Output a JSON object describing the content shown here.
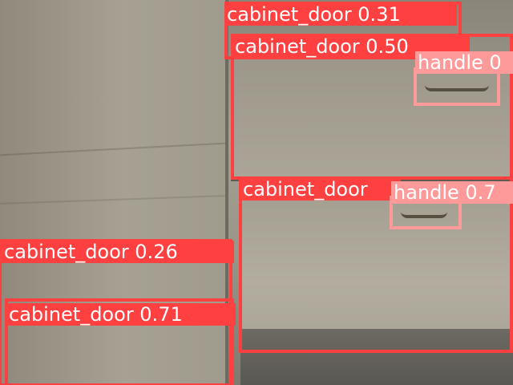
{
  "image": {
    "subject": "wooden cabinet doors and drawers with detection boxes",
    "colors": {
      "cabinet_door_box": "#ff4040",
      "handle_box": "#ff9a9a",
      "label_text": "#ffffff"
    }
  },
  "detections": [
    {
      "label": "cabinet_door 0.31"
    },
    {
      "label": "cabinet_door 0.50"
    },
    {
      "label": "handle 0"
    },
    {
      "label": "cabinet_door"
    },
    {
      "label": "handle 0.7"
    },
    {
      "label": "cabinet_door 0.26"
    },
    {
      "label": "cabinet_door 0.71"
    }
  ]
}
